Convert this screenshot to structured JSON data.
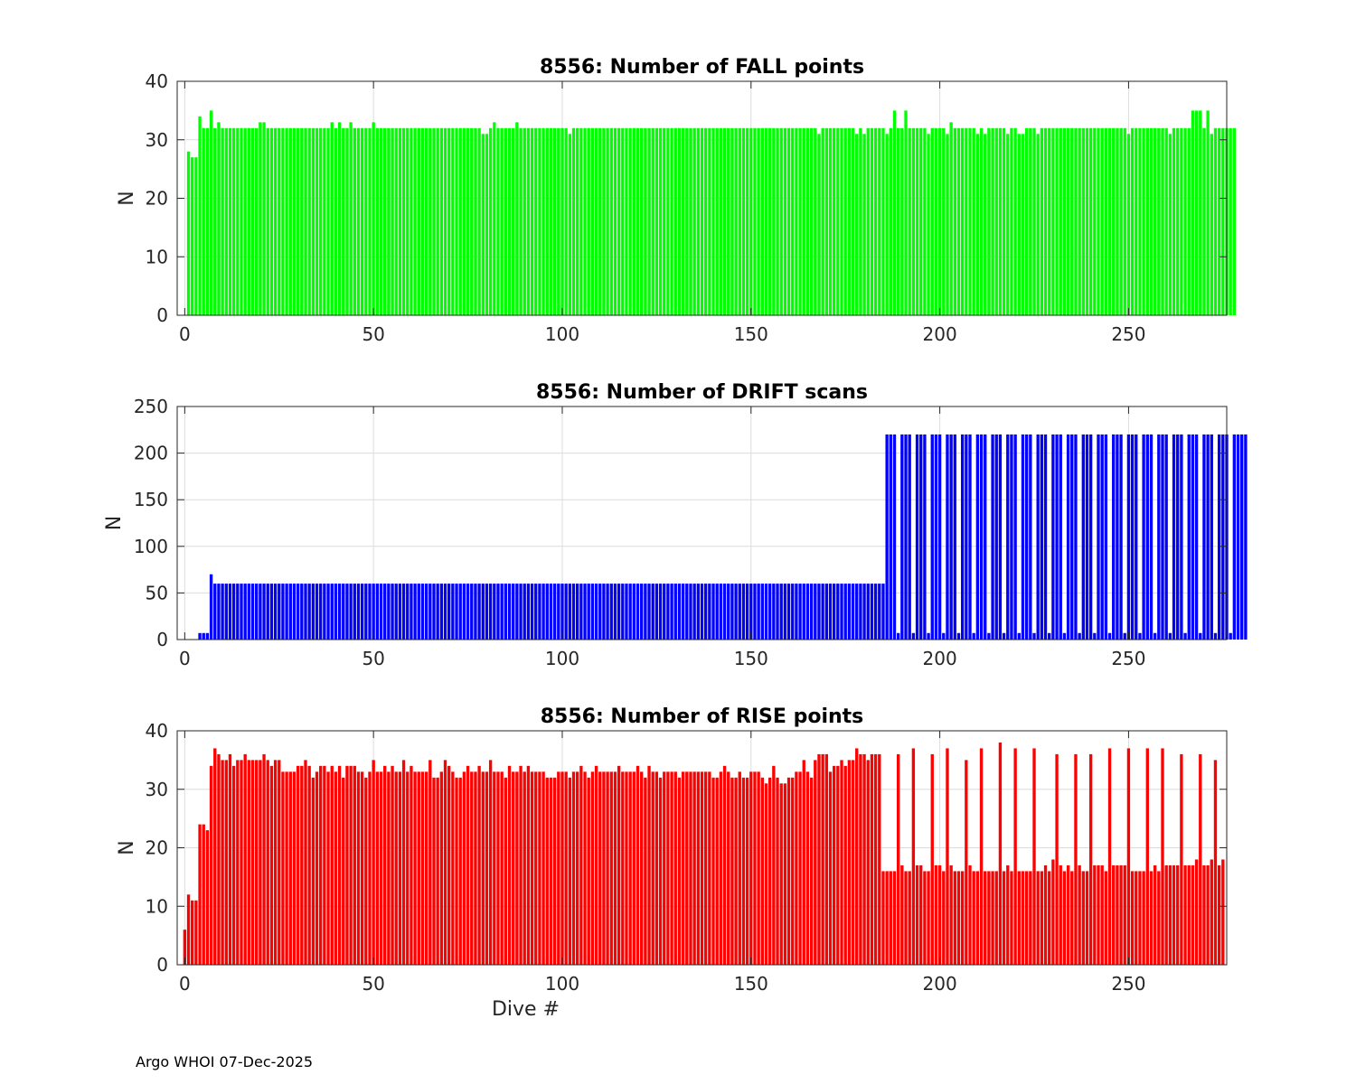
{
  "footer": "Argo WHOI 07-Dec-2025",
  "chart_data": [
    {
      "type": "bar",
      "title": "8556: Number of FALL points",
      "ylabel": "N",
      "xlabel": "",
      "color": "#00ff00",
      "xlim": [
        -2,
        276
      ],
      "ylim": [
        0,
        40
      ],
      "xticks": [
        0,
        50,
        100,
        150,
        200,
        250
      ],
      "yticks": [
        0,
        10,
        20,
        30,
        40
      ],
      "grid": true,
      "x_start": 1,
      "values": [
        28,
        27,
        27,
        34,
        32,
        32,
        35,
        32,
        33,
        32,
        32,
        32,
        32,
        32,
        32,
        32,
        32,
        32,
        32,
        33,
        33,
        32,
        32,
        32,
        32,
        32,
        32,
        32,
        32,
        32,
        32,
        32,
        32,
        32,
        32,
        32,
        32,
        32,
        33,
        32,
        33,
        32,
        32,
        33,
        32,
        32,
        32,
        32,
        32,
        33,
        32,
        32,
        32,
        32,
        32,
        32,
        32,
        32,
        32,
        32,
        32,
        32,
        32,
        32,
        32,
        32,
        32,
        32,
        32,
        32,
        32,
        32,
        32,
        32,
        32,
        32,
        32,
        32,
        31,
        31,
        32,
        33,
        32,
        32,
        32,
        32,
        32,
        33,
        32,
        32,
        32,
        32,
        32,
        32,
        32,
        32,
        32,
        32,
        32,
        32,
        32,
        31,
        32,
        32,
        32,
        32,
        32,
        32,
        32,
        32,
        32,
        32,
        32,
        32,
        32,
        32,
        32,
        32,
        32,
        32,
        32,
        32,
        32,
        32,
        32,
        32,
        32,
        32,
        32,
        32,
        32,
        32,
        32,
        32,
        32,
        32,
        32,
        32,
        32,
        32,
        32,
        32,
        32,
        32,
        32,
        32,
        32,
        32,
        32,
        32,
        32,
        32,
        32,
        32,
        32,
        32,
        32,
        32,
        32,
        32,
        32,
        32,
        32,
        32,
        32,
        32,
        32,
        31,
        32,
        32,
        32,
        32,
        32,
        32,
        32,
        32,
        32,
        31,
        32,
        31,
        32,
        32,
        32,
        32,
        32,
        31,
        32,
        35,
        32,
        32,
        35,
        32,
        32,
        32,
        32,
        32,
        31,
        32,
        32,
        32,
        32,
        31,
        33,
        32,
        32,
        32,
        32,
        32,
        32,
        31,
        32,
        31,
        32,
        32,
        32,
        32,
        32,
        31,
        32,
        32,
        31,
        31,
        32,
        32,
        32,
        31,
        32,
        32,
        32,
        32,
        32,
        32,
        32,
        32,
        32,
        32,
        32,
        32,
        32,
        32,
        32,
        32,
        32,
        32,
        32,
        32,
        32,
        32,
        32,
        31,
        32,
        32,
        32,
        32,
        32,
        32,
        32,
        32,
        32,
        32,
        31,
        32,
        32,
        32,
        32,
        32,
        35,
        35,
        35,
        32,
        35,
        31,
        32,
        32,
        32,
        32,
        32,
        32
      ]
    },
    {
      "type": "bar",
      "title": "8556: Number of DRIFT scans",
      "ylabel": "N",
      "xlabel": "",
      "color": "#0000ff",
      "xlim": [
        -2,
        276
      ],
      "ylim": [
        0,
        250
      ],
      "xticks": [
        0,
        50,
        100,
        150,
        200,
        250
      ],
      "yticks": [
        0,
        50,
        100,
        150,
        200,
        250
      ],
      "grid": true,
      "x_start": 1,
      "values": [
        0,
        0,
        0,
        7,
        7,
        7,
        70,
        60,
        60,
        60,
        60,
        60,
        60,
        60,
        60,
        60,
        60,
        60,
        60,
        60,
        60,
        60,
        60,
        60,
        60,
        60,
        60,
        60,
        60,
        60,
        60,
        60,
        60,
        60,
        60,
        60,
        60,
        60,
        60,
        60,
        60,
        60,
        60,
        60,
        60,
        60,
        60,
        60,
        60,
        60,
        60,
        60,
        60,
        60,
        60,
        60,
        60,
        60,
        60,
        60,
        60,
        60,
        60,
        60,
        60,
        60,
        60,
        60,
        60,
        60,
        60,
        60,
        60,
        60,
        60,
        60,
        60,
        60,
        60,
        60,
        60,
        60,
        60,
        60,
        60,
        60,
        60,
        60,
        60,
        60,
        60,
        60,
        60,
        60,
        60,
        60,
        60,
        60,
        60,
        60,
        60,
        60,
        60,
        60,
        60,
        60,
        60,
        60,
        60,
        60,
        60,
        60,
        60,
        60,
        60,
        60,
        60,
        60,
        60,
        60,
        60,
        60,
        60,
        60,
        60,
        60,
        60,
        60,
        60,
        60,
        60,
        60,
        60,
        60,
        60,
        60,
        60,
        60,
        60,
        60,
        60,
        60,
        60,
        60,
        60,
        60,
        60,
        60,
        60,
        60,
        60,
        60,
        60,
        60,
        60,
        60,
        60,
        60,
        60,
        60,
        60,
        60,
        60,
        60,
        60,
        60,
        60,
        60,
        60,
        60,
        60,
        60,
        60,
        60,
        60,
        60,
        60,
        60,
        60,
        60,
        60,
        60,
        60,
        60,
        60,
        220,
        220,
        220,
        7,
        220,
        220,
        220,
        7,
        220,
        220,
        220,
        7,
        220,
        220,
        220,
        7,
        220,
        220,
        220,
        7,
        220,
        220,
        220,
        7,
        220,
        220,
        220,
        7,
        220,
        220,
        220,
        7,
        220,
        220,
        220,
        7,
        220,
        220,
        220,
        7,
        220,
        220,
        220,
        7,
        220,
        220,
        220,
        7,
        220,
        220,
        220,
        7,
        220,
        220,
        220,
        7,
        220,
        220,
        220,
        7,
        220,
        220,
        220,
        7,
        220,
        220,
        220,
        7,
        220,
        220,
        220,
        7,
        220,
        220,
        220,
        7,
        220,
        220,
        220,
        7,
        220,
        220,
        220,
        7,
        220,
        220,
        220,
        7,
        220,
        220,
        220,
        7,
        220,
        220,
        220,
        220
      ]
    },
    {
      "type": "bar",
      "title": "8556: Number of RISE points",
      "ylabel": "N",
      "xlabel": "Dive #",
      "color": "#ff0000",
      "xlim": [
        -2,
        276
      ],
      "ylim": [
        0,
        40
      ],
      "xticks": [
        0,
        50,
        100,
        150,
        200,
        250
      ],
      "yticks": [
        0,
        10,
        20,
        30,
        40
      ],
      "grid": true,
      "x_start": 0,
      "values": [
        6,
        12,
        11,
        11,
        24,
        24,
        23,
        34,
        37,
        36,
        35,
        35,
        36,
        34,
        35,
        35,
        36,
        35,
        35,
        35,
        35,
        36,
        35,
        34,
        35,
        35,
        33,
        33,
        33,
        33,
        34,
        34,
        35,
        34,
        32,
        33,
        34,
        34,
        33,
        34,
        33,
        34,
        32,
        34,
        34,
        34,
        33,
        33,
        32,
        33,
        35,
        33,
        33,
        34,
        33,
        34,
        33,
        33,
        35,
        33,
        34,
        33,
        33,
        33,
        33,
        35,
        32,
        32,
        33,
        35,
        34,
        33,
        32,
        32,
        33,
        34,
        33,
        33,
        34,
        33,
        33,
        35,
        33,
        33,
        33,
        32,
        34,
        33,
        33,
        34,
        33,
        34,
        33,
        33,
        33,
        33,
        32,
        32,
        32,
        33,
        33,
        33,
        32,
        33,
        33,
        34,
        33,
        32,
        33,
        34,
        33,
        33,
        33,
        33,
        33,
        34,
        33,
        33,
        33,
        33,
        34,
        33,
        32,
        34,
        33,
        33,
        32,
        33,
        33,
        33,
        33,
        32,
        33,
        33,
        33,
        33,
        33,
        33,
        33,
        33,
        32,
        32,
        33,
        34,
        33,
        32,
        32,
        33,
        32,
        32,
        33,
        33,
        33,
        32,
        31,
        32,
        34,
        32,
        31,
        31,
        32,
        32,
        33,
        33,
        35,
        33,
        32,
        35,
        36,
        36,
        36,
        33,
        34,
        34,
        35,
        34,
        35,
        35,
        37,
        36,
        36,
        35,
        36,
        36,
        36,
        16,
        16,
        16,
        16,
        36,
        17,
        16,
        16,
        37,
        17,
        17,
        16,
        16,
        36,
        17,
        17,
        16,
        37,
        17,
        16,
        16,
        16,
        35,
        17,
        16,
        16,
        37,
        16,
        16,
        16,
        16,
        38,
        16,
        17,
        16,
        37,
        16,
        16,
        16,
        16,
        37,
        16,
        16,
        17,
        16,
        18,
        36,
        17,
        16,
        17,
        16,
        36,
        17,
        16,
        16,
        36,
        17,
        17,
        17,
        16,
        37,
        17,
        17,
        17,
        17,
        37,
        16,
        16,
        16,
        16,
        37,
        16,
        17,
        16,
        37,
        17,
        17,
        17,
        17,
        36,
        17,
        17,
        17,
        18,
        36,
        17,
        17,
        18,
        35,
        17,
        18
      ]
    }
  ]
}
